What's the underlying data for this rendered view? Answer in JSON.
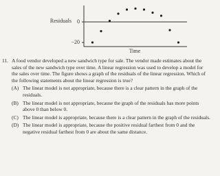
{
  "chart_data": {
    "type": "scatter",
    "y_label": "Residuals",
    "x_label": "Time",
    "x": [
      1,
      2,
      3,
      4,
      5,
      6,
      7,
      8,
      9,
      10,
      11
    ],
    "values": [
      -20,
      -9,
      1,
      8,
      12,
      13,
      12,
      9,
      6,
      -8,
      -20
    ],
    "color": "#222222",
    "xlim": [
      0,
      12
    ],
    "ylim": [
      -24,
      16
    ],
    "yticks": [
      0,
      {
        "value": -20,
        "label": "−20"
      }
    ],
    "zero_line": true
  },
  "question": {
    "number": "11.",
    "text": "A food vendor developed a new sandwich type for sale. The vendor made estimates about the sales of the new sandwich type over time. A linear regression was used to develop a model for the sales over time. The figure shows a graph of the residuals of the linear regression. Which of the following statements about the linear regression is true?",
    "options": [
      {
        "label": "(A)",
        "text": "The linear model is not appropriate, because there is a clear pattern in the graph of the residuals."
      },
      {
        "label": "(B)",
        "text": "The linear model is not appropriate, because the graph of the residuals has more points above 0 than below 0."
      },
      {
        "label": "(C)",
        "text": "The linear model is appropriate, because there is a clear pattern in the graph of the residuals."
      },
      {
        "label": "(D)",
        "text": "The linear model is appropriate, because the positive residual farthest from 0 and the negative residual farthest from 0 are about the same distance."
      }
    ]
  }
}
